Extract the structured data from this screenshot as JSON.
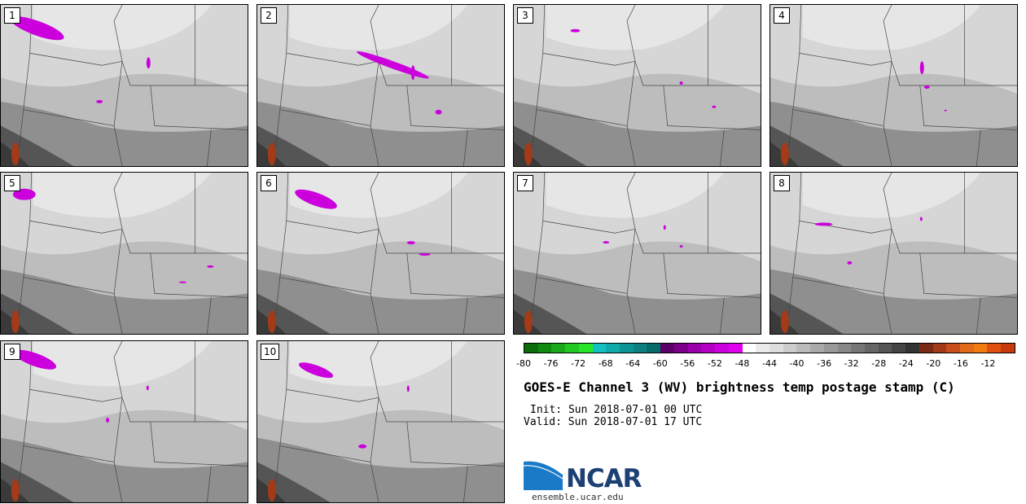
{
  "panels": [
    {
      "label": "1"
    },
    {
      "label": "2"
    },
    {
      "label": "3"
    },
    {
      "label": "4"
    },
    {
      "label": "5"
    },
    {
      "label": "6"
    },
    {
      "label": "7"
    },
    {
      "label": "8"
    },
    {
      "label": "9"
    },
    {
      "label": "10"
    }
  ],
  "colorbar": {
    "ticks": [
      "-80",
      "-76",
      "-72",
      "-68",
      "-64",
      "-60",
      "-56",
      "-52",
      "-48",
      "-44",
      "-40",
      "-36",
      "-32",
      "-28",
      "-24",
      "-20",
      "-16",
      "-12"
    ],
    "colors": [
      "#0b6b0b",
      "#118a11",
      "#19a919",
      "#21c821",
      "#27e627",
      "#12c2c2",
      "#10aaaa",
      "#0e9494",
      "#0c7f7f",
      "#086b6b",
      "#5a0066",
      "#7a0088",
      "#9a00aa",
      "#b400c4",
      "#cc00dd",
      "#e000ee",
      "#ffffff",
      "#ececec",
      "#dddddd",
      "#cccccc",
      "#bbbbbb",
      "#aaaaaa",
      "#999999",
      "#888888",
      "#777777",
      "#666666",
      "#555555",
      "#444444",
      "#333333",
      "#7a2a14",
      "#a33a18",
      "#c84e1c",
      "#e06a1a",
      "#f07c10",
      "#e0500f",
      "#c83a0c"
    ]
  },
  "title": "GOES-E Channel 3 (WV) brightness temp postage stamp (C)",
  "init": "Init: Sun 2018-07-01 00 UTC",
  "valid": "Valid: Sun 2018-07-01 17 UTC",
  "logo": {
    "text": "NCAR",
    "site": "ensemble.ucar.edu",
    "color": "#1c3f74",
    "accent": "#1a7ac7"
  }
}
